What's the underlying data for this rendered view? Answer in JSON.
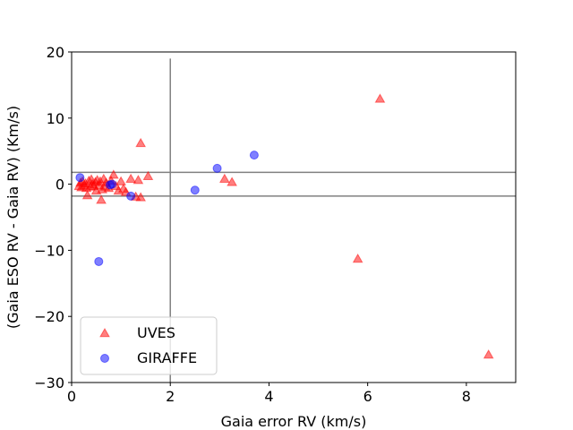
{
  "chart_data": {
    "type": "scatter",
    "title": "",
    "xlabel": "Gaia error RV (km/s)",
    "ylabel": "(Gaia ESO RV - Gaia RV) (Km/s)",
    "xlim": [
      0,
      9
    ],
    "ylim": [
      -30,
      20
    ],
    "xticks": [
      0,
      2,
      4,
      6,
      8
    ],
    "yticks": [
      -30,
      -20,
      -10,
      0,
      10,
      20
    ],
    "xtick_labels": [
      "0",
      "2",
      "4",
      "6",
      "8"
    ],
    "ytick_labels": [
      "−30",
      "−20",
      "−10",
      "0",
      "10",
      "20"
    ],
    "reference_lines": {
      "vertical_x": [
        2
      ],
      "horizontal_y": [
        1.8,
        -1.8
      ],
      "color": "#808080"
    },
    "legend_position": "lower-left",
    "series": [
      {
        "name": "UVES",
        "marker": "triangle",
        "color": "#ff0000",
        "points": [
          [
            0.15,
            -0.3
          ],
          [
            0.18,
            0.2
          ],
          [
            0.2,
            -0.5
          ],
          [
            0.22,
            0.4
          ],
          [
            0.25,
            -0.2
          ],
          [
            0.28,
            0.1
          ],
          [
            0.3,
            -0.6
          ],
          [
            0.32,
            -1.7
          ],
          [
            0.35,
            0.5
          ],
          [
            0.38,
            -0.4
          ],
          [
            0.4,
            0.7
          ],
          [
            0.42,
            0.0
          ],
          [
            0.45,
            -0.3
          ],
          [
            0.48,
            0.3
          ],
          [
            0.5,
            -1.0
          ],
          [
            0.52,
            0.6
          ],
          [
            0.55,
            -0.2
          ],
          [
            0.58,
            0.4
          ],
          [
            0.6,
            -2.4
          ],
          [
            0.62,
            -0.8
          ],
          [
            0.65,
            0.8
          ],
          [
            0.68,
            -0.4
          ],
          [
            0.7,
            0.2
          ],
          [
            0.75,
            -0.6
          ],
          [
            0.8,
            0.5
          ],
          [
            0.85,
            1.4
          ],
          [
            0.9,
            -0.3
          ],
          [
            0.95,
            -1.0
          ],
          [
            1.0,
            0.4
          ],
          [
            1.05,
            -0.7
          ],
          [
            1.1,
            -1.2
          ],
          [
            1.2,
            0.8
          ],
          [
            1.3,
            -1.9
          ],
          [
            1.35,
            0.6
          ],
          [
            1.4,
            -2.0
          ],
          [
            1.55,
            1.2
          ],
          [
            1.4,
            6.2
          ],
          [
            3.1,
            0.8
          ],
          [
            3.25,
            0.3
          ],
          [
            5.8,
            -11.3
          ],
          [
            6.25,
            12.9
          ],
          [
            8.45,
            -25.8
          ]
        ]
      },
      {
        "name": "GIRAFFE",
        "marker": "circle",
        "color": "#0000ff",
        "points": [
          [
            0.17,
            1.0
          ],
          [
            0.55,
            -11.7
          ],
          [
            0.78,
            -0.1
          ],
          [
            0.82,
            0.0
          ],
          [
            1.2,
            -1.8
          ],
          [
            2.5,
            -0.9
          ],
          [
            2.95,
            2.4
          ],
          [
            3.7,
            4.4
          ]
        ]
      }
    ]
  }
}
